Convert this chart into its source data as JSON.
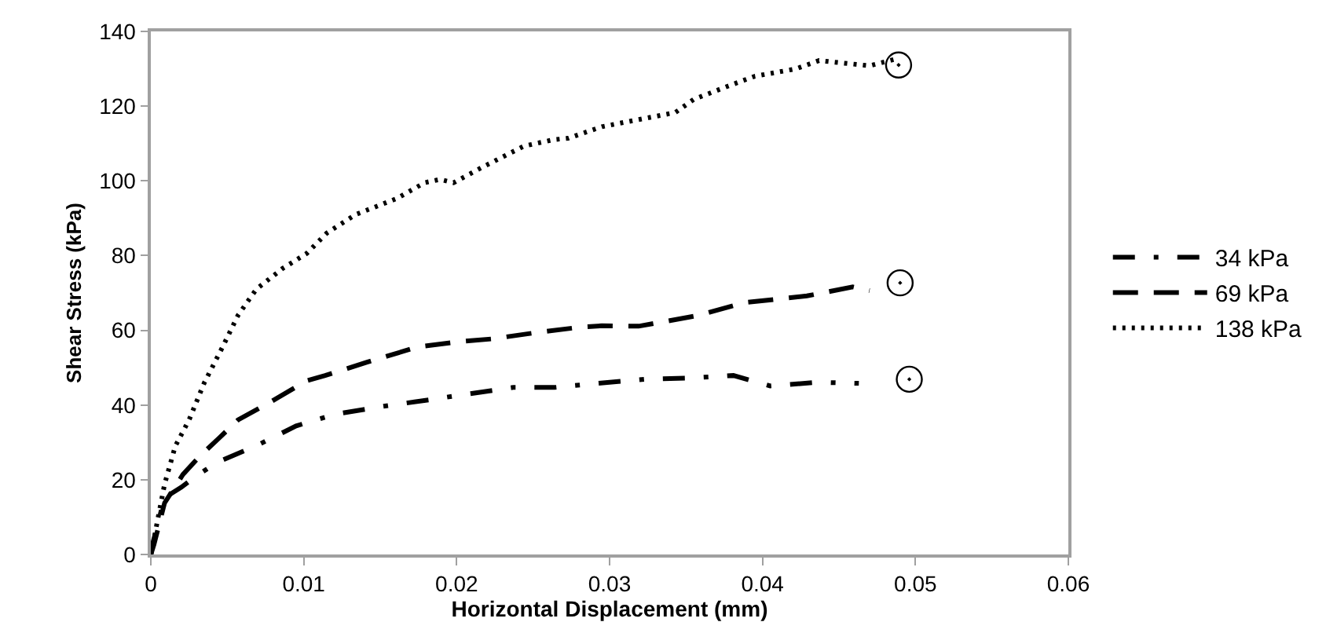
{
  "chart_data": {
    "type": "line",
    "xlabel": "Horizontal Displacement (mm)",
    "ylabel": "Shear Stress (kPa)",
    "xlim": [
      0,
      0.06
    ],
    "xticks": [
      0,
      0.01,
      0.02,
      0.03,
      0.04,
      0.05,
      0.06
    ],
    "ylim": [
      0,
      140
    ],
    "yticks": [
      0,
      20,
      40,
      60,
      80,
      100,
      120,
      140
    ],
    "legend": "right",
    "marker": "none",
    "series": [
      {
        "name": "34 kPa",
        "color": "#000000",
        "line_style": "dashdot",
        "x": [
          0,
          0.0001,
          0.0009,
          0.002,
          0.0028,
          0.0043,
          0.0069,
          0.0095,
          0.012,
          0.0151,
          0.0182,
          0.0208,
          0.0237,
          0.0264,
          0.0292,
          0.0323,
          0.0352,
          0.0381,
          0.0405,
          0.0436,
          0.0463
        ],
        "values": [
          0,
          2.6,
          15.2,
          18,
          20.5,
          24.6,
          29.1,
          34.4,
          37.5,
          39.6,
          41.4,
          43,
          44.7,
          44.7,
          45.8,
          46.9,
          47.2,
          47.9,
          45.1,
          46.1,
          45.8
        ]
      },
      {
        "name": "69 kPa",
        "color": "#000000",
        "line_style": "dashed",
        "x": [
          0,
          0.0002,
          0.0009,
          0.0021,
          0.0032,
          0.0045,
          0.0057,
          0.0079,
          0.0102,
          0.0114,
          0.0141,
          0.0175,
          0.0203,
          0.0223,
          0.0254,
          0.0282,
          0.0295,
          0.0319,
          0.0357,
          0.0388,
          0.0429,
          0.0459,
          0.047
        ],
        "values": [
          0,
          2.6,
          13.8,
          21.4,
          26.3,
          31.3,
          36,
          41,
          46.5,
          47.9,
          51.4,
          55.6,
          57,
          57.7,
          59.5,
          60.9,
          61.2,
          61.1,
          63.9,
          67.4,
          69.2,
          71.6,
          70.6
        ]
      },
      {
        "name": "138 kPa",
        "color": "#000000",
        "line_style": "dotted",
        "x": [
          0,
          0.0001,
          0.0004,
          0.0009,
          0.0016,
          0.0025,
          0.0035,
          0.0047,
          0.0057,
          0.0069,
          0.0086,
          0.0102,
          0.0115,
          0.0134,
          0.0161,
          0.0179,
          0.0189,
          0.0198,
          0.0217,
          0.0244,
          0.0263,
          0.0273,
          0.0295,
          0.0343,
          0.0355,
          0.0377,
          0.0395,
          0.0422,
          0.0437,
          0.047,
          0.0489
        ],
        "values": [
          0,
          1.3,
          8.3,
          18.8,
          29,
          36,
          46,
          55.6,
          64,
          71,
          76.5,
          80.6,
          86,
          91,
          95.3,
          99.5,
          100.4,
          99.5,
          103.7,
          109.3,
          111,
          111.4,
          114.5,
          118.3,
          121.8,
          125.3,
          128,
          130,
          132.2,
          130.8,
          132.8
        ]
      },
      {
        "type": "scatter",
        "color": "#000000",
        "marker": "circle",
        "x": [
          0.0489,
          0.049,
          0.0496
        ],
        "values": [
          131,
          72.7,
          46.9
        ]
      }
    ]
  }
}
